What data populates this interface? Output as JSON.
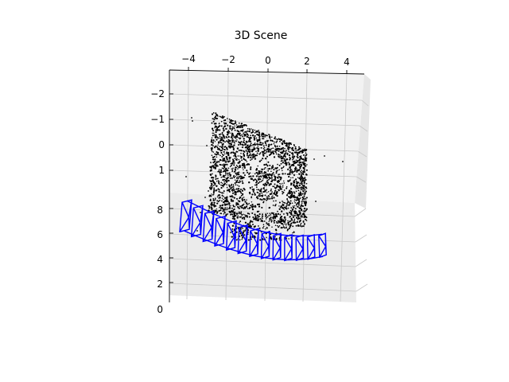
{
  "chart_data": {
    "type": "scatter",
    "projection": "3d",
    "title": "3D Scene",
    "xlabel": "",
    "ylabel": "",
    "zlabel": "",
    "x_ticks": [
      "−4",
      "−2",
      "0",
      "2",
      "4"
    ],
    "y_ticks": [
      "−2",
      "−1",
      "0",
      "1"
    ],
    "z_ticks": [
      "8",
      "6",
      "4",
      "2",
      "0"
    ],
    "xlim": [
      -4.6,
      4.6
    ],
    "ylim": [
      -2.6,
      1.8
    ],
    "zlim": [
      0,
      9
    ],
    "grid": true,
    "legend": "none",
    "colors": {
      "points": "#000000",
      "cameras": "#0000ff",
      "pane": "#f2f2f2",
      "grid": "#c8c8c8"
    },
    "series": [
      {
        "kind": "point-cloud",
        "x_range": [
          -4,
          4
        ],
        "y_range": [
          -1.4,
          1.4
        ],
        "z_range": [
          5,
          9
        ]
      },
      {
        "kind": "camera-frustums",
        "count": 13,
        "z_range": [
          4,
          8
        ]
      }
    ]
  }
}
